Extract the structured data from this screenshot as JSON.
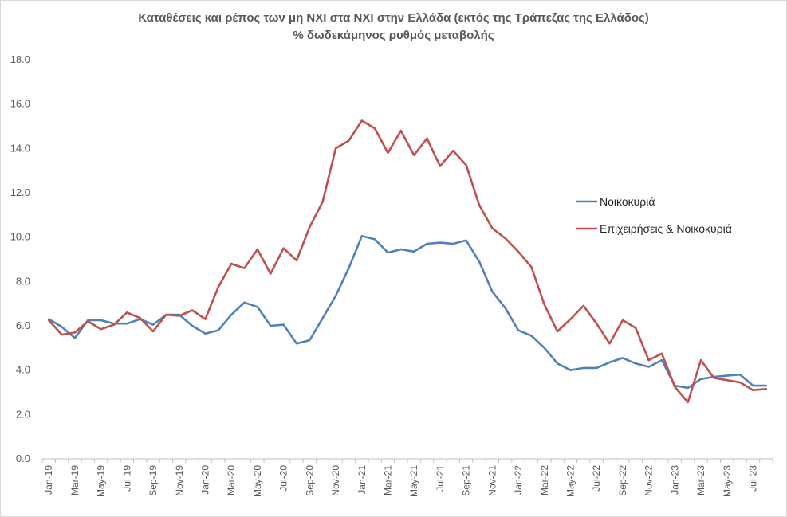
{
  "chart_data": {
    "type": "line",
    "title": "Καταθέσεις και ρέπος των μη ΝΧΙ στα ΝΧΙ στην Ελλάδα (εκτός της Τράπεζας της Ελλάδος)",
    "subtitle": "% δωδεκάμηνος ρυθμός μεταβολής",
    "xlabel": "",
    "ylabel": "",
    "ylim": [
      0,
      18
    ],
    "yticks": [
      "0.0",
      "2.0",
      "4.0",
      "6.0",
      "8.0",
      "10.0",
      "12.0",
      "14.0",
      "16.0",
      "18.0"
    ],
    "grid": false,
    "legend_position": "right",
    "x": [
      "Jan-19",
      "Feb-19",
      "Mar-19",
      "Apr-19",
      "May-19",
      "Jun-19",
      "Jul-19",
      "Aug-19",
      "Sep-19",
      "Oct-19",
      "Nov-19",
      "Dec-19",
      "Jan-20",
      "Feb-20",
      "Mar-20",
      "Apr-20",
      "May-20",
      "Jun-20",
      "Jul-20",
      "Aug-20",
      "Sep-20",
      "Oct-20",
      "Nov-20",
      "Dec-20",
      "Jan-21",
      "Feb-21",
      "Mar-21",
      "Apr-21",
      "May-21",
      "Jun-21",
      "Jul-21",
      "Aug-21",
      "Sep-21",
      "Oct-21",
      "Nov-21",
      "Dec-21",
      "Jan-22",
      "Feb-22",
      "Mar-22",
      "Apr-22",
      "May-22",
      "Jun-22",
      "Jul-22",
      "Aug-22",
      "Sep-22",
      "Oct-22",
      "Nov-22",
      "Dec-22",
      "Jan-23",
      "Feb-23",
      "Mar-23",
      "Apr-23",
      "May-23",
      "Jun-23",
      "Jul-23",
      "Aug-23"
    ],
    "tick_labels": [
      "Jan-19",
      "Mar-19",
      "May-19",
      "Jul-19",
      "Sep-19",
      "Nov-19",
      "Jan-20",
      "Mar-20",
      "May-20",
      "Jul-20",
      "Sep-20",
      "Nov-20",
      "Jan-21",
      "Mar-21",
      "May-21",
      "Jul-21",
      "Sep-21",
      "Nov-21",
      "Jan-22",
      "Mar-22",
      "May-22",
      "Jul-22",
      "Sep-22",
      "Nov-22",
      "Jan-23",
      "Mar-23",
      "May-23",
      "Jul-23"
    ],
    "series": [
      {
        "name": "Νοικοκυριά",
        "color": "#4f81bd",
        "values": [
          6.3,
          5.95,
          5.45,
          6.25,
          6.25,
          6.1,
          6.1,
          6.3,
          6.05,
          6.5,
          6.5,
          6.0,
          5.65,
          5.8,
          6.5,
          7.05,
          6.85,
          6.0,
          6.05,
          5.2,
          5.35,
          6.35,
          7.35,
          8.6,
          10.05,
          9.9,
          9.3,
          9.45,
          9.35,
          9.7,
          9.75,
          9.7,
          9.85,
          8.9,
          7.55,
          6.8,
          5.8,
          5.55,
          5.0,
          4.3,
          4.0,
          4.1,
          4.1,
          4.35,
          4.55,
          4.3,
          4.15,
          4.45,
          3.3,
          3.2,
          3.6,
          3.7,
          3.75,
          3.8,
          3.3,
          3.3
        ]
      },
      {
        "name": "Επιχειρήσεις & Νοικοκυριά",
        "color": "#c0504d",
        "values": [
          6.25,
          5.6,
          5.7,
          6.2,
          5.85,
          6.05,
          6.6,
          6.35,
          5.75,
          6.5,
          6.45,
          6.7,
          6.3,
          7.75,
          8.8,
          8.6,
          9.45,
          8.35,
          9.5,
          8.95,
          10.45,
          11.6,
          14.0,
          14.35,
          15.25,
          14.9,
          13.8,
          14.8,
          13.7,
          14.45,
          13.2,
          13.9,
          13.25,
          11.45,
          10.4,
          9.95,
          9.35,
          8.65,
          6.95,
          5.75,
          6.3,
          6.9,
          6.1,
          5.2,
          6.25,
          5.9,
          4.45,
          4.75,
          3.25,
          2.55,
          4.45,
          3.65,
          3.55,
          3.45,
          3.1,
          3.15
        ]
      }
    ]
  }
}
